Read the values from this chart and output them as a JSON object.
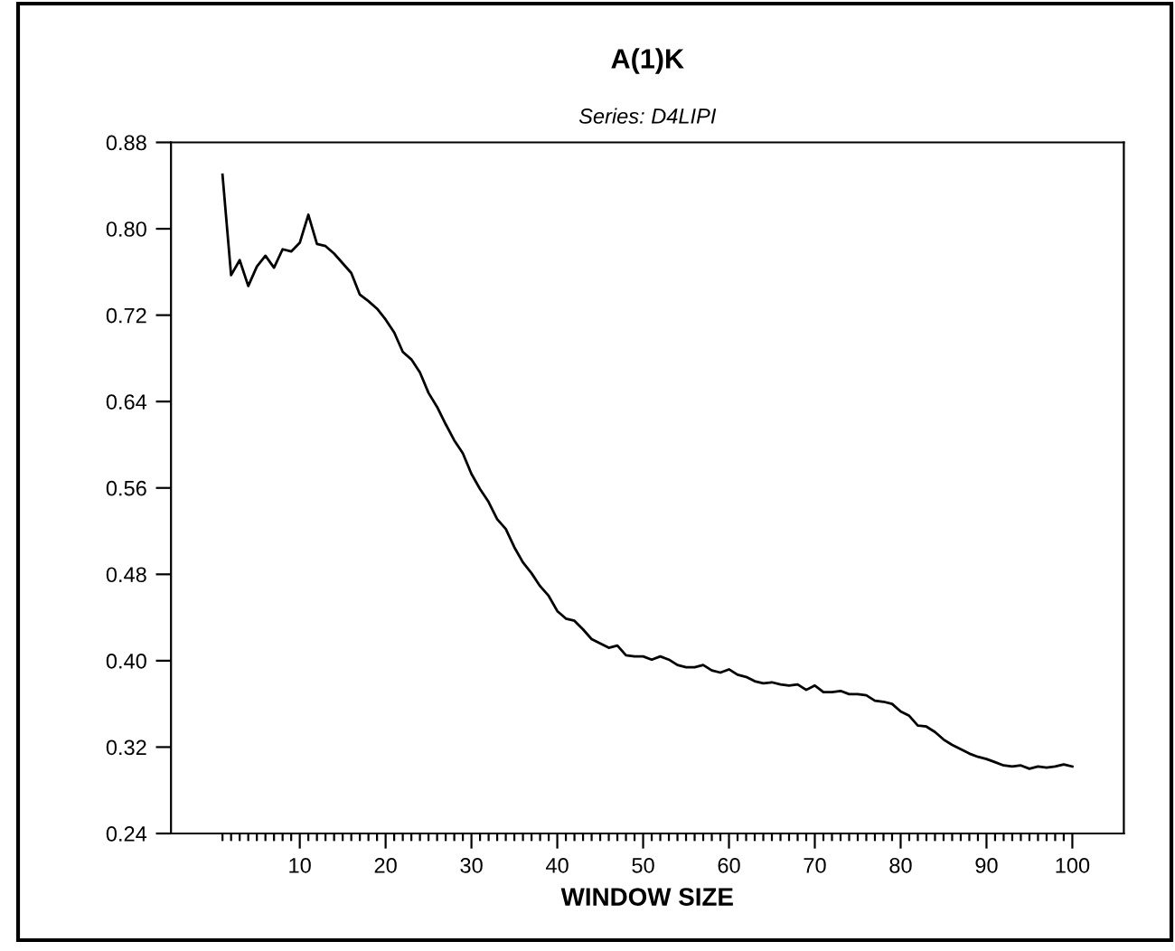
{
  "chart_data": {
    "type": "line",
    "title": "A(1)K",
    "subtitle": "Series: D4LIPI",
    "xlabel": "WINDOW SIZE",
    "x": [
      1,
      2,
      3,
      4,
      5,
      6,
      7,
      8,
      9,
      10,
      11,
      12,
      13,
      14,
      15,
      16,
      17,
      18,
      19,
      20,
      21,
      22,
      23,
      24,
      25,
      26,
      27,
      28,
      29,
      30,
      31,
      32,
      33,
      34,
      35,
      36,
      37,
      38,
      39,
      40,
      41,
      42,
      43,
      44,
      45,
      46,
      47,
      48,
      49,
      50,
      51,
      52,
      53,
      54,
      55,
      56,
      57,
      58,
      59,
      60,
      61,
      62,
      63,
      64,
      65,
      66,
      67,
      68,
      69,
      70,
      71,
      72,
      73,
      74,
      75,
      76,
      77,
      78,
      79,
      80,
      81,
      82,
      83,
      84,
      85,
      86,
      87,
      88,
      89,
      90,
      91,
      92,
      93,
      94,
      95,
      96,
      97,
      98,
      99,
      100
    ],
    "series": [
      {
        "color": "#000000",
        "values": [
          0.85,
          0.757,
          0.771,
          0.747,
          0.765,
          0.775,
          0.764,
          0.781,
          0.779,
          0.787,
          0.813,
          0.786,
          0.784,
          0.777,
          0.768,
          0.759,
          0.739,
          0.733,
          0.726,
          0.716,
          0.704,
          0.686,
          0.679,
          0.667,
          0.648,
          0.635,
          0.619,
          0.604,
          0.592,
          0.573,
          0.559,
          0.547,
          0.531,
          0.522,
          0.505,
          0.491,
          0.481,
          0.469,
          0.46,
          0.446,
          0.439,
          0.437,
          0.429,
          0.42,
          0.416,
          0.412,
          0.414,
          0.405,
          0.404,
          0.404,
          0.401,
          0.404,
          0.401,
          0.396,
          0.394,
          0.394,
          0.396,
          0.391,
          0.389,
          0.392,
          0.387,
          0.385,
          0.381,
          0.379,
          0.38,
          0.378,
          0.377,
          0.378,
          0.373,
          0.377,
          0.371,
          0.371,
          0.372,
          0.369,
          0.369,
          0.368,
          0.363,
          0.362,
          0.36,
          0.353,
          0.349,
          0.34,
          0.339,
          0.334,
          0.327,
          0.322,
          0.318,
          0.314,
          0.311,
          0.309,
          0.306,
          0.303,
          0.302,
          0.303,
          0.3,
          0.302,
          0.301,
          0.302,
          0.304,
          0.302
        ]
      }
    ],
    "xlim": [
      -5,
      106
    ],
    "ylim": [
      0.24,
      0.88
    ],
    "xticks": [
      {
        "value": 1,
        "label": null
      },
      {
        "value": 2,
        "label": null
      },
      {
        "value": 3,
        "label": null
      },
      {
        "value": 4,
        "label": null
      },
      {
        "value": 5,
        "label": null
      },
      {
        "value": 6,
        "label": null
      },
      {
        "value": 7,
        "label": null
      },
      {
        "value": 8,
        "label": null
      },
      {
        "value": 9,
        "label": null
      },
      10,
      {
        "value": 11,
        "label": null
      },
      {
        "value": 12,
        "label": null
      },
      {
        "value": 13,
        "label": null
      },
      {
        "value": 14,
        "label": null
      },
      {
        "value": 15,
        "label": null
      },
      {
        "value": 16,
        "label": null
      },
      {
        "value": 17,
        "label": null
      },
      {
        "value": 18,
        "label": null
      },
      {
        "value": 19,
        "label": null
      },
      20,
      {
        "value": 21,
        "label": null
      },
      {
        "value": 22,
        "label": null
      },
      {
        "value": 23,
        "label": null
      },
      {
        "value": 24,
        "label": null
      },
      {
        "value": 25,
        "label": null
      },
      {
        "value": 26,
        "label": null
      },
      {
        "value": 27,
        "label": null
      },
      {
        "value": 28,
        "label": null
      },
      {
        "value": 29,
        "label": null
      },
      30,
      {
        "value": 31,
        "label": null
      },
      {
        "value": 32,
        "label": null
      },
      {
        "value": 33,
        "label": null
      },
      {
        "value": 34,
        "label": null
      },
      {
        "value": 35,
        "label": null
      },
      {
        "value": 36,
        "label": null
      },
      {
        "value": 37,
        "label": null
      },
      {
        "value": 38,
        "label": null
      },
      {
        "value": 39,
        "label": null
      },
      40,
      {
        "value": 41,
        "label": null
      },
      {
        "value": 42,
        "label": null
      },
      {
        "value": 43,
        "label": null
      },
      {
        "value": 44,
        "label": null
      },
      {
        "value": 45,
        "label": null
      },
      {
        "value": 46,
        "label": null
      },
      {
        "value": 47,
        "label": null
      },
      {
        "value": 48,
        "label": null
      },
      {
        "value": 49,
        "label": null
      },
      50,
      {
        "value": 51,
        "label": null
      },
      {
        "value": 52,
        "label": null
      },
      {
        "value": 53,
        "label": null
      },
      {
        "value": 54,
        "label": null
      },
      {
        "value": 55,
        "label": null
      },
      {
        "value": 56,
        "label": null
      },
      {
        "value": 57,
        "label": null
      },
      {
        "value": 58,
        "label": null
      },
      {
        "value": 59,
        "label": null
      },
      60,
      {
        "value": 61,
        "label": null
      },
      {
        "value": 62,
        "label": null
      },
      {
        "value": 63,
        "label": null
      },
      {
        "value": 64,
        "label": null
      },
      {
        "value": 65,
        "label": null
      },
      {
        "value": 66,
        "label": null
      },
      {
        "value": 67,
        "label": null
      },
      {
        "value": 68,
        "label": null
      },
      {
        "value": 69,
        "label": null
      },
      70,
      {
        "value": 71,
        "label": null
      },
      {
        "value": 72,
        "label": null
      },
      {
        "value": 73,
        "label": null
      },
      {
        "value": 74,
        "label": null
      },
      {
        "value": 75,
        "label": null
      },
      {
        "value": 76,
        "label": null
      },
      {
        "value": 77,
        "label": null
      },
      {
        "value": 78,
        "label": null
      },
      {
        "value": 79,
        "label": null
      },
      80,
      {
        "value": 81,
        "label": null
      },
      {
        "value": 82,
        "label": null
      },
      {
        "value": 83,
        "label": null
      },
      {
        "value": 84,
        "label": null
      },
      {
        "value": 85,
        "label": null
      },
      {
        "value": 86,
        "label": null
      },
      {
        "value": 87,
        "label": null
      },
      {
        "value": 88,
        "label": null
      },
      {
        "value": 89,
        "label": null
      },
      90,
      {
        "value": 91,
        "label": null
      },
      {
        "value": 92,
        "label": null
      },
      {
        "value": 93,
        "label": null
      },
      {
        "value": 94,
        "label": null
      },
      {
        "value": 95,
        "label": null
      },
      {
        "value": 96,
        "label": null
      },
      {
        "value": 97,
        "label": null
      },
      {
        "value": 98,
        "label": null
      },
      {
        "value": 99,
        "label": null
      },
      100
    ],
    "yticks": [
      {
        "value": 0.24,
        "label": "0.24"
      },
      {
        "value": 0.32,
        "label": "0.32"
      },
      {
        "value": 0.4,
        "label": "0.40"
      },
      {
        "value": 0.48,
        "label": "0.48"
      },
      {
        "value": 0.56,
        "label": "0.56"
      },
      {
        "value": 0.64,
        "label": "0.64"
      },
      {
        "value": 0.72,
        "label": "0.72"
      },
      {
        "value": 0.8,
        "label": "0.80"
      },
      {
        "value": 0.88,
        "label": "0.88"
      }
    ],
    "grid": false,
    "legend": false,
    "marker": "none",
    "line_style": "solid"
  }
}
